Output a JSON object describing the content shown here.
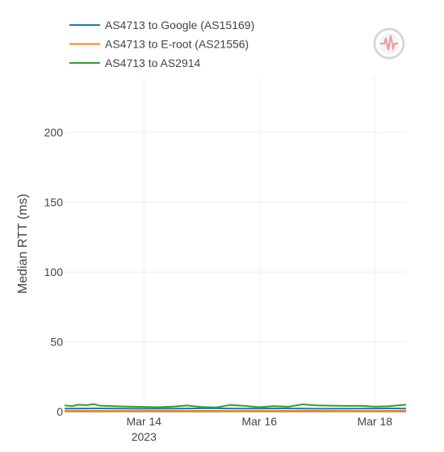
{
  "chart_data": {
    "type": "line",
    "title": "",
    "xlabel": "",
    "ylabel": "Median RTT (ms)",
    "ylim": [
      0,
      240
    ],
    "xlim": [
      "2023-03-12T15:00",
      "2023-03-18T13:00"
    ],
    "yticks": [
      0,
      50,
      100,
      150,
      200
    ],
    "xticks": [
      {
        "date": "2023-03-14",
        "label": "Mar 14",
        "sublabel": "2023"
      },
      {
        "date": "2023-03-16",
        "label": "Mar 16",
        "sublabel": ""
      },
      {
        "date": "2023-03-18",
        "label": "Mar 18",
        "sublabel": ""
      }
    ],
    "grid": true,
    "legend_position": "top-left",
    "series": [
      {
        "name": "AS4713 to Google (AS15169)",
        "color": "#1f77b4",
        "x": [
          "2023-03-12T15:00",
          "2023-03-13T06:00",
          "2023-03-13T21:00",
          "2023-03-14T12:00",
          "2023-03-15T03:00",
          "2023-03-15T18:00",
          "2023-03-16T09:00",
          "2023-03-17T00:00",
          "2023-03-17T15:00",
          "2023-03-18T06:00",
          "2023-03-18T13:00"
        ],
        "values": [
          2.2,
          2.3,
          2.1,
          2.2,
          2.4,
          2.2,
          2.3,
          2.1,
          2.2,
          2.3,
          2.2
        ]
      },
      {
        "name": "AS4713 to E-root (AS21556)",
        "color": "#ff7f0e",
        "x": [
          "2023-03-12T15:00",
          "2023-03-13T06:00",
          "2023-03-13T21:00",
          "2023-03-14T12:00",
          "2023-03-15T03:00",
          "2023-03-15T18:00",
          "2023-03-16T09:00",
          "2023-03-17T00:00",
          "2023-03-17T15:00",
          "2023-03-18T06:00",
          "2023-03-18T13:00"
        ],
        "values": [
          0.6,
          0.6,
          0.5,
          0.6,
          0.6,
          0.5,
          0.6,
          0.6,
          0.5,
          0.6,
          0.6
        ]
      },
      {
        "name": "AS4713 to AS2914",
        "color": "#2ca02c",
        "x": [
          "2023-03-12T15:00",
          "2023-03-12T18:00",
          "2023-03-12T21:00",
          "2023-03-13T00:00",
          "2023-03-13T03:00",
          "2023-03-13T06:00",
          "2023-03-13T12:00",
          "2023-03-13T18:00",
          "2023-03-14T00:00",
          "2023-03-14T06:00",
          "2023-03-14T12:00",
          "2023-03-14T18:00",
          "2023-03-15T00:00",
          "2023-03-15T06:00",
          "2023-03-15T12:00",
          "2023-03-15T18:00",
          "2023-03-16T00:00",
          "2023-03-16T06:00",
          "2023-03-16T12:00",
          "2023-03-16T18:00",
          "2023-03-17T00:00",
          "2023-03-17T06:00",
          "2023-03-17T12:00",
          "2023-03-17T18:00",
          "2023-03-18T00:00",
          "2023-03-18T06:00",
          "2023-03-18T13:00"
        ],
        "values": [
          4.5,
          4.0,
          5.0,
          4.6,
          5.4,
          4.2,
          3.9,
          3.6,
          3.4,
          3.2,
          3.6,
          4.4,
          3.3,
          3.0,
          4.8,
          4.1,
          3.2,
          4.0,
          3.5,
          5.2,
          4.5,
          4.3,
          4.1,
          4.2,
          3.6,
          3.9,
          5.0
        ]
      }
    ]
  },
  "icons": {
    "logo": "seismograph-logo-icon"
  }
}
